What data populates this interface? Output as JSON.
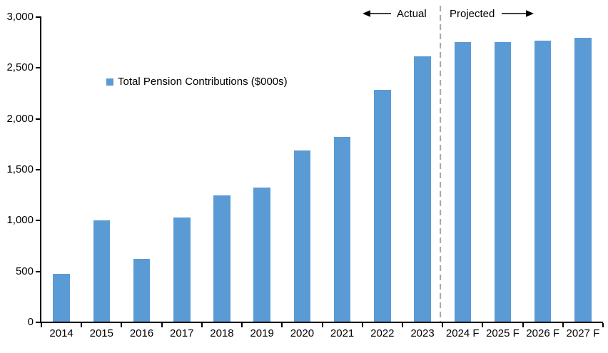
{
  "chart_data": {
    "type": "bar",
    "title": "",
    "legend_label": "Total Pension Contributions ($000s)",
    "legend_position": "upper-left-inside",
    "categories": [
      "2014",
      "2015",
      "2016",
      "2017",
      "2018",
      "2019",
      "2020",
      "2021",
      "2022",
      "2023",
      "2024 F",
      "2025 F",
      "2026 F",
      "2027 F"
    ],
    "values": [
      470,
      995,
      615,
      1020,
      1240,
      1320,
      1680,
      1815,
      2280,
      2610,
      2750,
      2745,
      2765,
      2790
    ],
    "xlabel": "",
    "ylabel": "",
    "ylim": [
      0,
      3000
    ],
    "ytick_step": 500,
    "ytick_labels": [
      "0",
      "500",
      "1,000",
      "1,500",
      "2,000",
      "2,500",
      "3,000"
    ],
    "grid": false,
    "bar_color": "#5B9BD5",
    "axis_color": "#000000",
    "divider_color": "#A6A6A6",
    "divider_after_index": 9,
    "annotations": {
      "actual_label": "Actual",
      "projected_label": "Projected"
    },
    "icons": {
      "actual_arrow": "left-arrow",
      "projected_arrow": "right-arrow",
      "divider": "vertical-dashed-line"
    }
  }
}
